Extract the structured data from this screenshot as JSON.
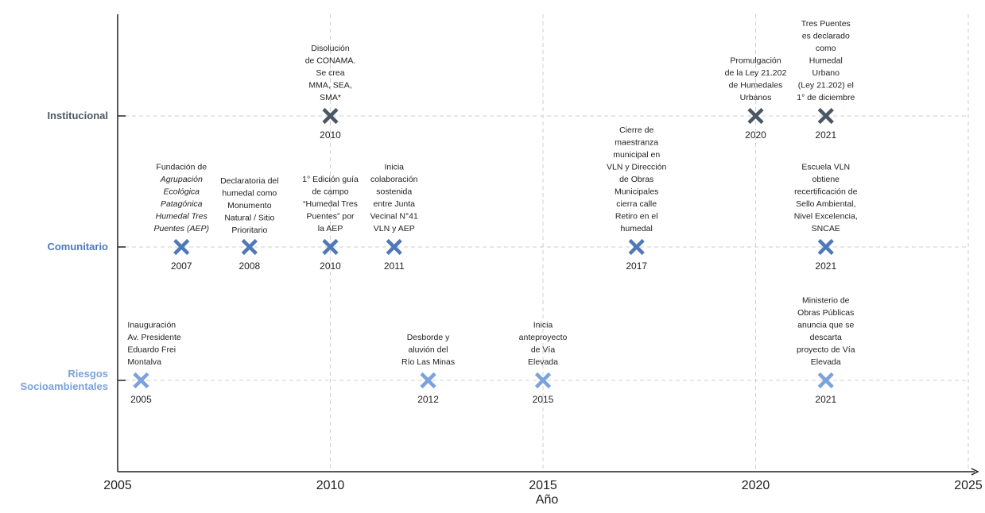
{
  "chart_data": {
    "type": "scatter",
    "xlabel": "Año",
    "xlim": [
      2005,
      2025
    ],
    "x_ticks": [
      "2005",
      "2010",
      "2015",
      "2020",
      "2025"
    ],
    "categories": [
      {
        "key": "inst",
        "label": "Institucional",
        "color": "#4a5866"
      },
      {
        "key": "com",
        "label": "Comunitario",
        "color": "#4f78b8"
      },
      {
        "key": "rie",
        "label": [
          "Riesgos",
          "Socioambientales"
        ],
        "color": "#7ba2dc"
      }
    ],
    "grid": true,
    "events": [
      {
        "category": "inst",
        "x": 2010.0,
        "year": "2010",
        "lines": [
          "Disolución",
          "de CONAMA.",
          "Se crea",
          "MMA, SEA,",
          "SMA*"
        ]
      },
      {
        "category": "inst",
        "x": 2020.0,
        "year": "2020",
        "lines": [
          "Promulgación",
          "de la Ley 21.202",
          "de Humedales",
          "Urbanos"
        ]
      },
      {
        "category": "inst",
        "x": 2021.65,
        "year": "2021",
        "lines": [
          "Tres Puentes",
          "es declarado",
          "como",
          "Humedal",
          "Urbano",
          "(Ley 21.202) el",
          "1° de diciembre"
        ]
      },
      {
        "category": "com",
        "x": 2006.5,
        "year": "2007",
        "lines": [
          "Fundación de",
          "Agrupación",
          "Ecológica",
          "Patagónica",
          "Humedal Tres",
          "Puentes (AEP)"
        ],
        "italic_lines": [
          1,
          2,
          3,
          4,
          5
        ]
      },
      {
        "category": "com",
        "x": 2008.1,
        "year": "2008",
        "label_above": true,
        "lines": [
          "Declaratoria del",
          "humedal como",
          "Monumento",
          "Natural / Sitio",
          "Prioritario"
        ]
      },
      {
        "category": "com",
        "x": 2010.0,
        "year": "2010",
        "lines": [
          "1° Edición guía",
          "de campo",
          "“Humedal Tres",
          "Puentes” por",
          "la AEP"
        ]
      },
      {
        "category": "com",
        "x": 2011.5,
        "year": "2011",
        "lines": [
          "Inicia",
          "colaboración",
          "sostenida",
          "entre Junta",
          "Vecinal N°41",
          "VLN y AEP"
        ]
      },
      {
        "category": "com",
        "x": 2017.2,
        "year": "2017",
        "lines": [
          "Cierre de",
          "maestranza",
          "municipal en",
          "VLN y Dirección",
          "de Obras",
          "Municipales",
          "cierra calle",
          "Retiro en el",
          "humedal"
        ]
      },
      {
        "category": "com",
        "x": 2021.65,
        "year": "2021",
        "lines": [
          "Escuela VLN",
          "obtiene",
          "recertificación de",
          "Sello Ambiental,",
          "Nivel Excelencia,",
          "SNCAE"
        ]
      },
      {
        "category": "rie",
        "x": 2005.55,
        "year": "2005",
        "lines": [
          "Inauguración",
          "Av. Presidente",
          "Eduardo Frei",
          "Montalva"
        ],
        "align": "start"
      },
      {
        "category": "rie",
        "x": 2012.3,
        "year": "2012",
        "lines": [
          "Desborde y",
          "aluvión del",
          "Río Las Minas"
        ]
      },
      {
        "category": "rie",
        "x": 2015.0,
        "year": "2015",
        "lines": [
          "Inicia",
          "anteproyecto",
          "de Vía",
          "Elevada"
        ]
      },
      {
        "category": "rie",
        "x": 2021.65,
        "year": "2021",
        "lines": [
          "Ministerio de",
          "Obras Públicas",
          "anuncia que se",
          "descarta",
          "proyecto de Vía",
          "Elevada"
        ]
      }
    ]
  }
}
